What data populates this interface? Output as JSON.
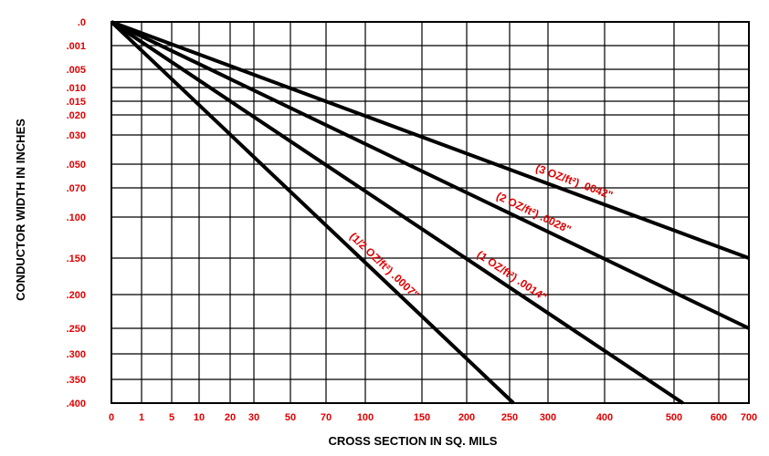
{
  "chart_data": {
    "type": "line",
    "xlabel": "CROSS SECTION IN SQ. MILS",
    "ylabel": "CONDUCTOR WIDTH IN INCHES",
    "x_ticks": [
      "0",
      "1",
      "5",
      "10",
      "20",
      "30",
      "50",
      "70",
      "100",
      "150",
      "200",
      "250",
      "300",
      "400",
      "500",
      "600",
      "700"
    ],
    "y_ticks": [
      ".0",
      ".001",
      ".005",
      ".010",
      ".015",
      ".020",
      ".030",
      ".050",
      ".070",
      ".100",
      ".150",
      ".200",
      ".250",
      ".300",
      ".350",
      ".400"
    ],
    "series": [
      {
        "name": "(3 OZ/ft²) .0042\"",
        "points": [
          [
            0,
            0
          ],
          [
            700,
            0.15
          ]
        ]
      },
      {
        "name": "(2 OZ/ft²) .0028\"",
        "points": [
          [
            0,
            0
          ],
          [
            700,
            0.25
          ]
        ]
      },
      {
        "name": "(1 OZ/ft²) .0014\"",
        "points": [
          [
            0,
            0
          ],
          [
            520,
            0.4
          ]
        ]
      },
      {
        "name": "(1/2 OZ/ft²) .0007\"",
        "points": [
          [
            0,
            0
          ],
          [
            255,
            0.4
          ]
        ]
      }
    ],
    "grid": true,
    "colors": {
      "tick_labels": "#e00000",
      "series_labels": "#e00000",
      "lines": "#000000",
      "axis_titles": "#000000"
    }
  }
}
